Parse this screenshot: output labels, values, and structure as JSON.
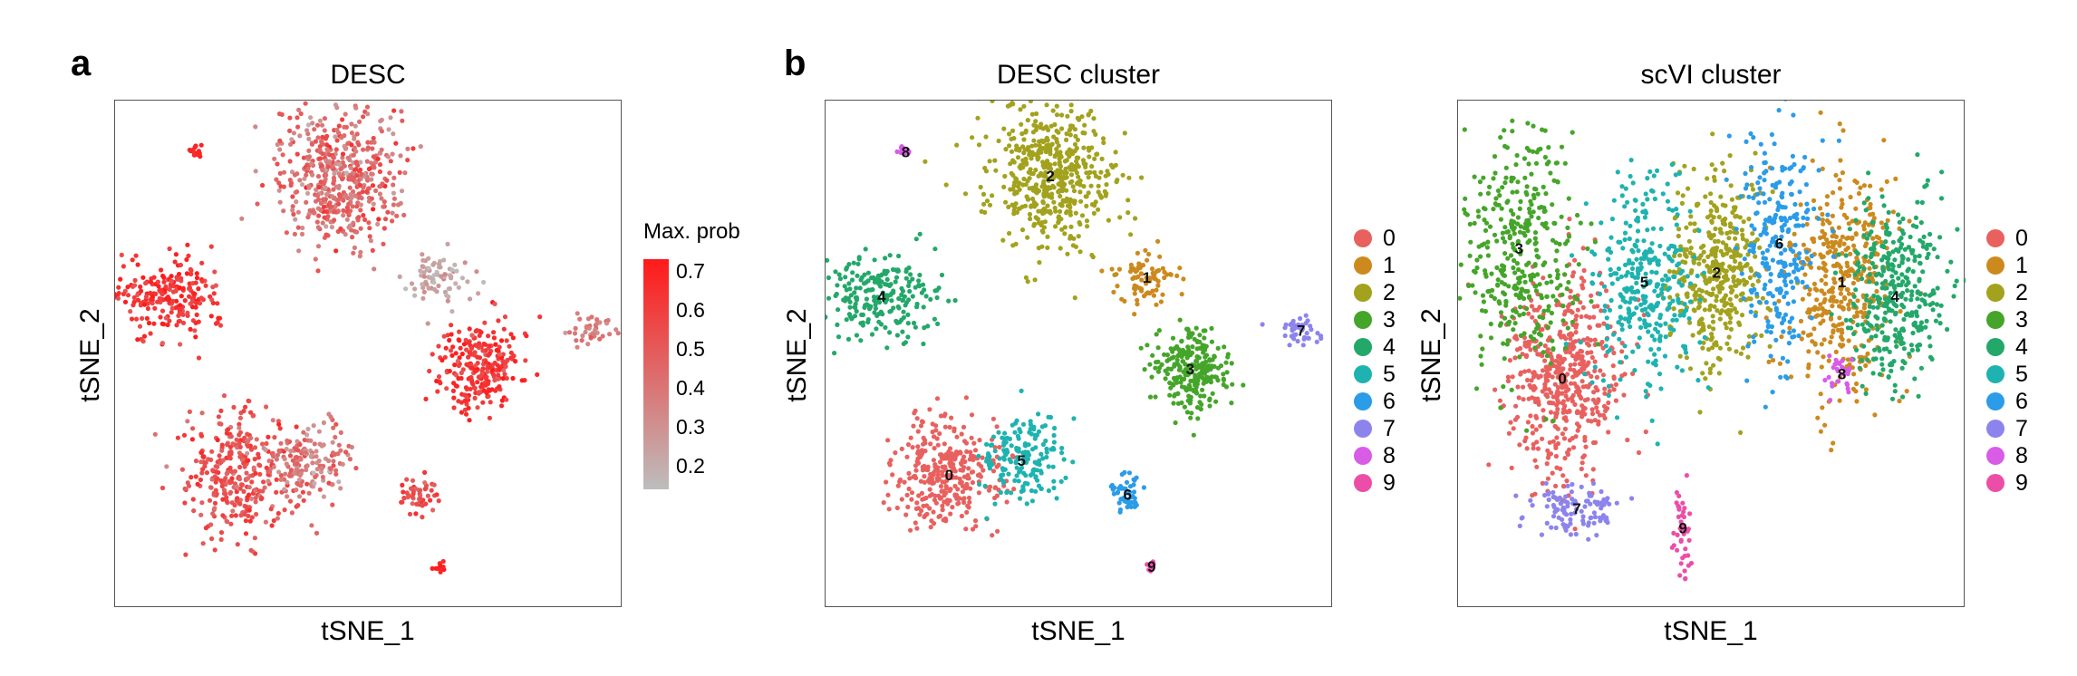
{
  "panel_labels": {
    "a": "a",
    "b": "b"
  },
  "colors": {
    "cluster_palette": [
      "#E8615F",
      "#CC8A1E",
      "#A2A21E",
      "#45A52A",
      "#23A86A",
      "#1EB3B0",
      "#2A9CE8",
      "#8C84EC",
      "#D85CE6",
      "#EC4EA7"
    ],
    "prob_low": "#BDBDBD",
    "prob_high": "#FF1A1A"
  },
  "chart_data": [
    {
      "type": "scatter",
      "title": "DESC",
      "xlabel": "tSNE_1",
      "ylabel": "tSNE_2",
      "color_mode": "continuous",
      "legend": {
        "title": "Max. prob",
        "ticks": [
          "0.7",
          "0.6",
          "0.5",
          "0.4",
          "0.3",
          "0.2"
        ],
        "range": [
          0.15,
          0.75
        ],
        "placement": "right"
      },
      "xlim": [
        -50,
        50
      ],
      "ylim": [
        -50,
        50
      ],
      "grid": false,
      "clusters": [
        {
          "label": "0",
          "cx": -27,
          "cy": -25,
          "sx": 5.5,
          "sy": 6,
          "n": 330,
          "value": 0.55,
          "spread": 0.08
        },
        {
          "label": "5",
          "cx": -12,
          "cy": -22,
          "sx": 4.5,
          "sy": 4.5,
          "n": 170,
          "value": 0.4,
          "spread": 0.1
        },
        {
          "label": "4",
          "cx": -41,
          "cy": 12,
          "sx": 6,
          "sy": 4,
          "n": 230,
          "value": 0.65,
          "spread": 0.06
        },
        {
          "label": "2",
          "cx": -6,
          "cy": 37,
          "sx": 6.5,
          "sy": 7.5,
          "n": 520,
          "value": 0.45,
          "spread": 0.1
        },
        {
          "label": "1",
          "cx": 14,
          "cy": 16,
          "sx": 3,
          "sy": 3,
          "n": 80,
          "value": 0.25,
          "spread": 0.06
        },
        {
          "label": "3",
          "cx": 23,
          "cy": -3,
          "sx": 4,
          "sy": 4.5,
          "n": 260,
          "value": 0.65,
          "spread": 0.07
        },
        {
          "label": "6",
          "cx": 10,
          "cy": -29,
          "sx": 1.8,
          "sy": 2,
          "n": 50,
          "value": 0.55,
          "spread": 0.07
        },
        {
          "label": "7",
          "cx": 46,
          "cy": 5,
          "sx": 2.3,
          "sy": 1.5,
          "n": 40,
          "value": 0.4,
          "spread": 0.06
        },
        {
          "label": "8",
          "cx": -36,
          "cy": 42,
          "sx": 0.8,
          "sy": 0.8,
          "n": 14,
          "value": 0.72,
          "spread": 0.02
        },
        {
          "label": "9",
          "cx": 15,
          "cy": -44,
          "sx": 0.7,
          "sy": 0.7,
          "n": 10,
          "value": 0.72,
          "spread": 0.02
        }
      ]
    },
    {
      "type": "scatter",
      "title": "DESC cluster",
      "xlabel": "tSNE_1",
      "ylabel": "tSNE_2",
      "color_mode": "categorical",
      "legend": {
        "entries": [
          "0",
          "1",
          "2",
          "3",
          "4",
          "5",
          "6",
          "7",
          "8",
          "9"
        ],
        "placement": "right"
      },
      "xlim": [
        -50,
        50
      ],
      "ylim": [
        -50,
        50
      ],
      "grid": false,
      "clusters": [
        {
          "label": "0",
          "cx": -27,
          "cy": -25,
          "sx": 5.5,
          "sy": 6,
          "n": 330
        },
        {
          "label": "5",
          "cx": -12,
          "cy": -22,
          "sx": 4.5,
          "sy": 4.5,
          "n": 170
        },
        {
          "label": "4",
          "cx": -41,
          "cy": 12,
          "sx": 6,
          "sy": 4,
          "n": 230
        },
        {
          "label": "2",
          "cx": -6,
          "cy": 37,
          "sx": 6.5,
          "sy": 7.5,
          "n": 520
        },
        {
          "label": "1",
          "cx": 14,
          "cy": 16,
          "sx": 3,
          "sy": 3,
          "n": 80
        },
        {
          "label": "3",
          "cx": 23,
          "cy": -3,
          "sx": 4,
          "sy": 4.5,
          "n": 260
        },
        {
          "label": "6",
          "cx": 10,
          "cy": -29,
          "sx": 1.8,
          "sy": 2,
          "n": 50
        },
        {
          "label": "7",
          "cx": 46,
          "cy": 5,
          "sx": 2.3,
          "sy": 1.5,
          "n": 40
        },
        {
          "label": "8",
          "cx": -36,
          "cy": 42,
          "sx": 0.8,
          "sy": 0.8,
          "n": 14
        },
        {
          "label": "9",
          "cx": 15,
          "cy": -44,
          "sx": 0.7,
          "sy": 0.7,
          "n": 10
        }
      ]
    },
    {
      "type": "scatter",
      "title": "scVI cluster",
      "xlabel": "tSNE_1",
      "ylabel": "tSNE_2",
      "color_mode": "categorical",
      "legend": {
        "entries": [
          "0",
          "1",
          "2",
          "3",
          "4",
          "5",
          "6",
          "7",
          "8",
          "9"
        ],
        "placement": "right"
      },
      "xlim": [
        -50,
        50
      ],
      "ylim": [
        -50,
        50
      ],
      "grid": false,
      "clusters": [
        {
          "label": "0",
          "cx": -31,
          "cy": -5,
          "sx": 6,
          "sy": 11,
          "n": 520
        },
        {
          "label": "1",
          "cx": 27,
          "cy": 15,
          "sx": 6,
          "sy": 12,
          "n": 400
        },
        {
          "label": "2",
          "cx": 1,
          "cy": 17,
          "sx": 5,
          "sy": 10,
          "n": 420
        },
        {
          "label": "3",
          "cx": -40,
          "cy": 22,
          "sx": 6,
          "sy": 13,
          "n": 380
        },
        {
          "label": "4",
          "cx": 38,
          "cy": 12,
          "sx": 5,
          "sy": 10,
          "n": 360
        },
        {
          "label": "5",
          "cx": -14,
          "cy": 15,
          "sx": 5,
          "sy": 11,
          "n": 330
        },
        {
          "label": "6",
          "cx": 14,
          "cy": 23,
          "sx": 4,
          "sy": 12,
          "n": 260
        },
        {
          "label": "7",
          "cx": -28,
          "cy": -32,
          "sx": 5,
          "sy": 3,
          "n": 110
        },
        {
          "label": "8",
          "cx": 27,
          "cy": -4,
          "sx": 1.5,
          "sy": 2,
          "n": 30
        },
        {
          "label": "9",
          "cx": -6,
          "cy": -36,
          "sx": 1,
          "sy": 5,
          "n": 45
        }
      ]
    }
  ]
}
